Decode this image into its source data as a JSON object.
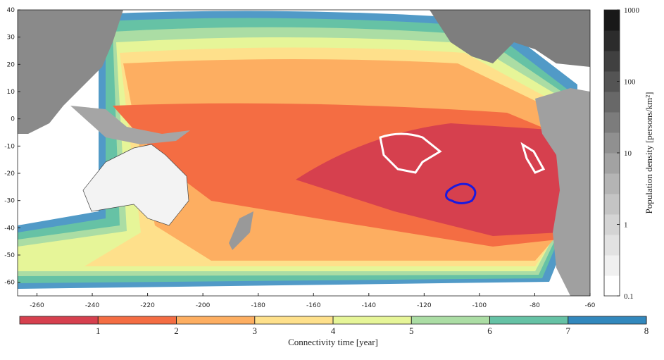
{
  "map": {
    "xlim": [
      -267,
      -60
    ],
    "ylim": [
      -65,
      40
    ],
    "xticks": [
      -260,
      -240,
      -220,
      -200,
      -180,
      -160,
      -140,
      -120,
      -100,
      -80,
      -60
    ],
    "yticks": [
      -60,
      -50,
      -40,
      -30,
      -20,
      -10,
      0,
      10,
      20,
      30,
      40
    ]
  },
  "connectivity_colorbar": {
    "label": "Connectivity time [year]",
    "lim": [
      0,
      8
    ],
    "ticks": [
      1,
      2,
      3,
      4,
      5,
      6,
      7,
      8
    ],
    "colors": [
      "#d6404e",
      "#f46d43",
      "#fdae61",
      "#fee08b",
      "#e6f598",
      "#abdda4",
      "#66c2a5",
      "#3288bd"
    ]
  },
  "population_colorbar": {
    "label": "Population density [persons/km²]",
    "log": true,
    "lim": [
      0.1,
      1000
    ],
    "ticks": [
      0.1,
      1,
      10,
      100,
      1000
    ],
    "colors": [
      "#ffffff",
      "#f0f0f0",
      "#e2e2e2",
      "#d4d4d4",
      "#c4c4c4",
      "#b4b4b4",
      "#a2a2a2",
      "#909090",
      "#7c7c7c",
      "#686868",
      "#545454",
      "#404040",
      "#2c2c2c",
      "#181818"
    ]
  }
}
